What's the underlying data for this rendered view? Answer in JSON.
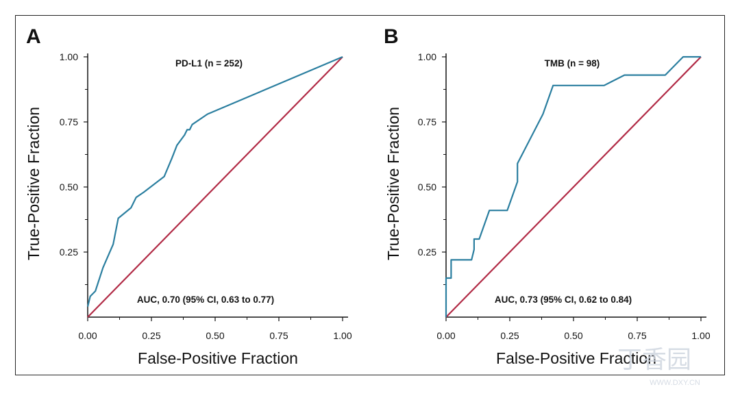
{
  "chart_data": [
    {
      "type": "line",
      "panel": "A",
      "title": "PD-L1 (n = 252)",
      "xlabel": "False-Positive Fraction",
      "ylabel": "True-Positive Fraction",
      "xlim": [
        0,
        1
      ],
      "ylim": [
        0,
        1
      ],
      "xticks": [
        "0.00",
        "0.25",
        "0.50",
        "0.75",
        "1.00"
      ],
      "yticks": [
        "0.25",
        "0.50",
        "0.75",
        "1.00"
      ],
      "annotation": "AUC, 0.70 (95% CI, 0.63 to 0.77)",
      "series": [
        {
          "name": "ROC",
          "color": "#2a7e9f",
          "x": [
            0,
            0.01,
            0.03,
            0.06,
            0.1,
            0.12,
            0.17,
            0.19,
            0.22,
            0.3,
            0.33,
            0.35,
            0.38,
            0.39,
            0.4,
            0.41,
            0.47,
            1.0
          ],
          "y": [
            0.04,
            0.08,
            0.1,
            0.19,
            0.28,
            0.38,
            0.42,
            0.46,
            0.48,
            0.54,
            0.61,
            0.66,
            0.7,
            0.72,
            0.72,
            0.74,
            0.78,
            1.0
          ]
        },
        {
          "name": "Reference",
          "color": "#b12a45",
          "x": [
            0,
            1
          ],
          "y": [
            0,
            1
          ]
        }
      ]
    },
    {
      "type": "line",
      "panel": "B",
      "title": "TMB (n = 98)",
      "xlabel": "False-Positive Fraction",
      "ylabel": "True-Positive Fraction",
      "xlim": [
        0,
        1
      ],
      "ylim": [
        0,
        1
      ],
      "xticks": [
        "0.00",
        "0.25",
        "0.50",
        "0.75",
        "1.00"
      ],
      "yticks": [
        "0.25",
        "0.50",
        "0.75",
        "1.00"
      ],
      "annotation": "AUC, 0.73 (95% CI, 0.62 to 0.84)",
      "series": [
        {
          "name": "ROC",
          "color": "#2a7e9f",
          "x": [
            0,
            0,
            0.01,
            0.01,
            0.02,
            0.02,
            0.1,
            0.11,
            0.11,
            0.13,
            0.13,
            0.17,
            0.24,
            0.28,
            0.28,
            0.38,
            0.42,
            0.62,
            0.7,
            0.86,
            0.93,
            1.0
          ],
          "y": [
            0,
            0.15,
            0.15,
            0.15,
            0.15,
            0.22,
            0.22,
            0.26,
            0.3,
            0.3,
            0.3,
            0.41,
            0.41,
            0.52,
            0.59,
            0.78,
            0.89,
            0.89,
            0.93,
            0.93,
            1.0,
            1.0
          ]
        },
        {
          "name": "Reference",
          "color": "#b12a45",
          "x": [
            0,
            1
          ],
          "y": [
            0,
            1
          ]
        }
      ]
    }
  ],
  "watermark": {
    "text": "丁香园",
    "subtext": "WWW.DXY.CN"
  }
}
